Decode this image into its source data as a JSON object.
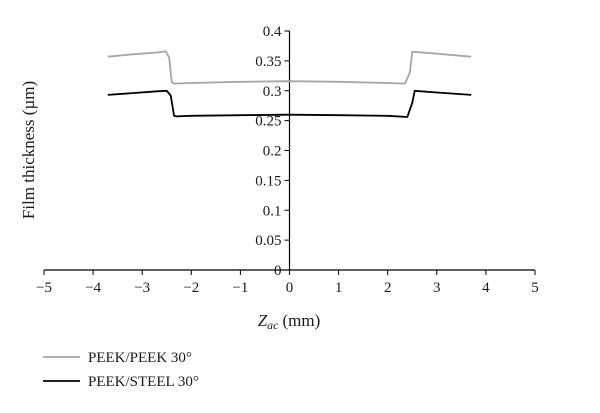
{
  "chart_data": {
    "type": "line",
    "title": "",
    "xlabel": "(mm)",
    "xlabel_symbol": "Z",
    "xlabel_subscript": "ac",
    "ylabel": "Film thickness (µm)",
    "xlim": [
      -5,
      5
    ],
    "ylim": [
      0,
      0.4
    ],
    "xticks": [
      "−5",
      "−4",
      "−3",
      "−2",
      "−1",
      "0",
      "1",
      "2",
      "3",
      "4",
      "5"
    ],
    "yticks": [
      "0",
      "0.05",
      "0.1",
      "0.15",
      "0.2",
      "0.25",
      "0.3",
      "0.35",
      "0.4"
    ],
    "grid": false,
    "legend_position": "bottom-left",
    "series": [
      {
        "name": "PEEK/PEEK 30°",
        "color": "#a6a6a6",
        "points": [
          [
            -3.7,
            0.357
          ],
          [
            -3.2,
            0.361
          ],
          [
            -2.7,
            0.364
          ],
          [
            -2.52,
            0.366
          ],
          [
            -2.45,
            0.355
          ],
          [
            -2.4,
            0.315
          ],
          [
            -2.35,
            0.312
          ],
          [
            -2.0,
            0.313
          ],
          [
            -1.0,
            0.315
          ],
          [
            0.0,
            0.316
          ],
          [
            1.0,
            0.315
          ],
          [
            2.0,
            0.313
          ],
          [
            2.35,
            0.312
          ],
          [
            2.45,
            0.33
          ],
          [
            2.5,
            0.365
          ],
          [
            2.56,
            0.365
          ],
          [
            3.0,
            0.362
          ],
          [
            3.7,
            0.357
          ]
        ]
      },
      {
        "name": "PEEK/STEEL 30°",
        "color": "#000000",
        "points": [
          [
            -3.7,
            0.293
          ],
          [
            -3.2,
            0.296
          ],
          [
            -2.7,
            0.299
          ],
          [
            -2.5,
            0.3
          ],
          [
            -2.42,
            0.292
          ],
          [
            -2.35,
            0.258
          ],
          [
            -2.3,
            0.257
          ],
          [
            -2.0,
            0.258
          ],
          [
            -1.0,
            0.259
          ],
          [
            0.0,
            0.26
          ],
          [
            1.0,
            0.259
          ],
          [
            2.0,
            0.258
          ],
          [
            2.4,
            0.256
          ],
          [
            2.5,
            0.28
          ],
          [
            2.55,
            0.3
          ],
          [
            3.0,
            0.297
          ],
          [
            3.7,
            0.293
          ]
        ]
      }
    ]
  }
}
